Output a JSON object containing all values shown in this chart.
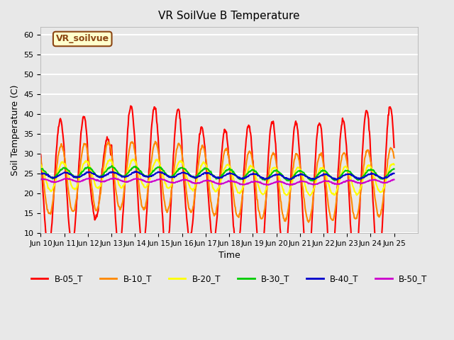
{
  "title": "VR SoilVue B Temperature",
  "xlabel": "Time",
  "ylabel": "Soil Temperature (C)",
  "ylim": [
    10,
    62
  ],
  "xlim_days": [
    9,
    25
  ],
  "background_color": "#e8e8e8",
  "plot_bg_color": "#e8e8e8",
  "grid_color": "white",
  "annotation_text": "VR_soilvue",
  "annotation_bg": "#ffffcc",
  "annotation_border": "#8b4513",
  "series": {
    "B-05_T": {
      "color": "#ff0000",
      "lw": 1.5
    },
    "B-10_T": {
      "color": "#ff8800",
      "lw": 1.5
    },
    "B-20_T": {
      "color": "#ffff00",
      "lw": 1.5
    },
    "B-30_T": {
      "color": "#00cc00",
      "lw": 1.5
    },
    "B-40_T": {
      "color": "#0000cc",
      "lw": 1.5
    },
    "B-50_T": {
      "color": "#cc00cc",
      "lw": 1.5
    }
  },
  "tick_labels": [
    "Jun 10",
    "Jun 11",
    "Jun 12",
    "Jun 13",
    "Jun 14",
    "Jun 15",
    "Jun 16",
    "Jun 17",
    "Jun 18",
    "Jun 19",
    "Jun 20",
    "Jun 21",
    "Jun 22",
    "Jun 23",
    "Jun 24",
    "Jun 25"
  ],
  "yticks": [
    10,
    15,
    20,
    25,
    30,
    35,
    40,
    45,
    50,
    55,
    60
  ]
}
